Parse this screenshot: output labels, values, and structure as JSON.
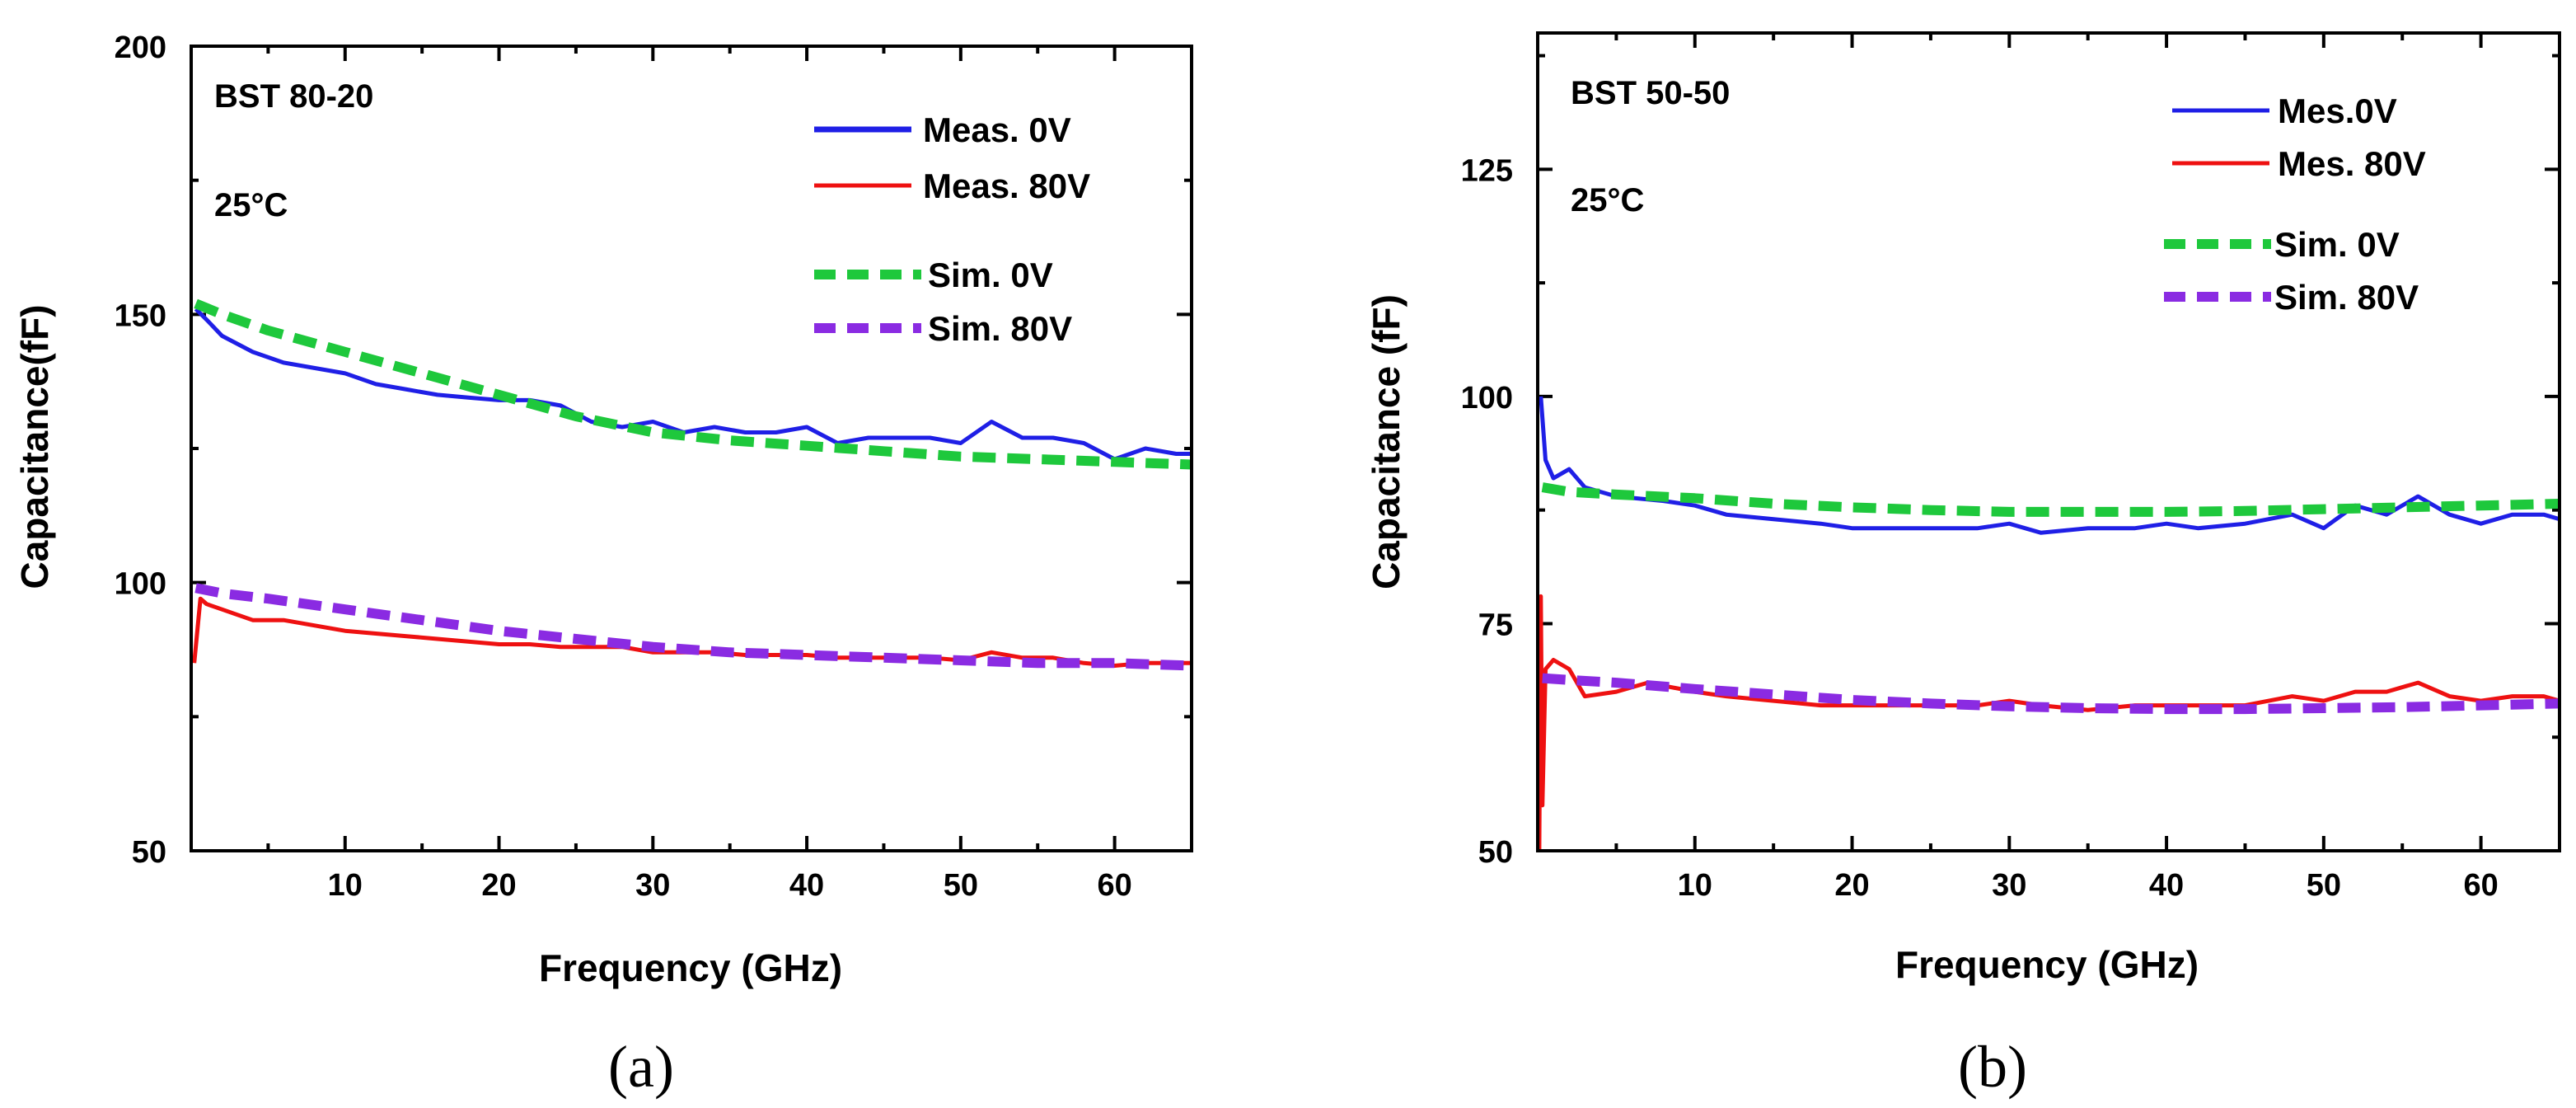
{
  "chart_data": [
    {
      "type": "line",
      "panel_label": "(a)",
      "title": "",
      "xlabel": "Frequency (GHz)",
      "ylabel": "Capacitance(fF)",
      "xlim": [
        0,
        65
      ],
      "ylim": [
        50,
        200
      ],
      "x_ticks": [
        10,
        20,
        30,
        40,
        50,
        60
      ],
      "y_ticks": [
        50,
        100,
        150,
        200
      ],
      "annotations": [
        "BST 80-20",
        "25°C"
      ],
      "legend_position": "top-right",
      "series": [
        {
          "name": "Meas. 0V",
          "color": "#1f1fe6",
          "style": "solid",
          "x": [
            0.3,
            1,
            2,
            4,
            6,
            8,
            10,
            12,
            14,
            16,
            18,
            20,
            22,
            24,
            26,
            28,
            30,
            32,
            34,
            36,
            38,
            40,
            42,
            44,
            46,
            48,
            50,
            52,
            54,
            56,
            58,
            60,
            62,
            64,
            65
          ],
          "y": [
            151,
            149,
            146,
            143,
            141,
            140,
            139,
            137,
            136,
            135,
            134.5,
            134,
            134,
            133,
            130,
            129,
            130,
            128,
            129,
            128,
            128,
            129,
            126,
            127,
            127,
            127,
            126,
            130,
            127,
            127,
            126,
            123,
            125,
            124,
            124
          ]
        },
        {
          "name": "Meas. 80V",
          "color": "#ee1111",
          "style": "solid",
          "x": [
            0.2,
            0.6,
            1,
            2,
            3,
            4,
            6,
            8,
            10,
            12,
            14,
            16,
            18,
            20,
            22,
            24,
            26,
            28,
            30,
            32,
            34,
            36,
            38,
            40,
            42,
            44,
            46,
            48,
            50,
            52,
            54,
            56,
            58,
            60,
            62,
            64,
            65
          ],
          "y": [
            85,
            97,
            96,
            95,
            94,
            93,
            93,
            92,
            91,
            90.5,
            90,
            89.5,
            89,
            88.5,
            88.5,
            88,
            88,
            88,
            87,
            87,
            87,
            86.5,
            86.5,
            86.5,
            86,
            86,
            86,
            86,
            85.5,
            87,
            86,
            86,
            85,
            84.5,
            85,
            85,
            85
          ]
        },
        {
          "name": "Sim. 0V",
          "color": "#1ec83c",
          "style": "dashed",
          "x": [
            0.3,
            2,
            5,
            10,
            15,
            20,
            25,
            30,
            35,
            40,
            45,
            50,
            55,
            60,
            65
          ],
          "y": [
            152,
            150,
            147,
            143,
            139,
            135,
            131,
            128,
            126.5,
            125.5,
            124.5,
            123.5,
            123,
            122.5,
            122
          ]
        },
        {
          "name": "Sim. 80V",
          "color": "#8a2be2",
          "style": "dashed",
          "x": [
            0.3,
            2,
            5,
            10,
            15,
            20,
            25,
            30,
            35,
            40,
            45,
            50,
            55,
            60,
            65
          ],
          "y": [
            99,
            98,
            97,
            95,
            93,
            91,
            89.5,
            88,
            87,
            86.5,
            86,
            85.5,
            85,
            85,
            84.5
          ]
        }
      ]
    },
    {
      "type": "line",
      "panel_label": "(b)",
      "title": "",
      "xlabel": "Frequency (GHz)",
      "ylabel": "Capacitance (fF)",
      "xlim": [
        0,
        65
      ],
      "ylim": [
        50,
        140
      ],
      "x_ticks": [
        10,
        20,
        30,
        40,
        50,
        60
      ],
      "y_ticks": [
        50,
        75,
        100,
        125
      ],
      "annotations": [
        "BST 50-50",
        "25°C"
      ],
      "legend_position": "top-right",
      "series": [
        {
          "name": "Mes.0V",
          "color": "#1f1fe6",
          "style": "solid",
          "x": [
            0.2,
            0.5,
            1,
            2,
            3,
            5,
            8,
            10,
            12,
            15,
            18,
            20,
            22,
            25,
            28,
            30,
            32,
            35,
            38,
            40,
            42,
            45,
            48,
            50,
            52,
            54,
            56,
            58,
            60,
            62,
            64,
            65
          ],
          "y": [
            100,
            93,
            91,
            92,
            90,
            89,
            88.5,
            88,
            87,
            86.5,
            86,
            85.5,
            85.5,
            85.5,
            85.5,
            86,
            85,
            85.5,
            85.5,
            86,
            85.5,
            86,
            87,
            85.5,
            88,
            87,
            89,
            87,
            86,
            87,
            87,
            86.5
          ]
        },
        {
          "name": "Mes. 80V",
          "color": "#ee1111",
          "style": "solid",
          "x": [
            0.1,
            0.2,
            0.3,
            0.5,
            1,
            2,
            3,
            5,
            7,
            10,
            12,
            15,
            18,
            20,
            22,
            25,
            28,
            30,
            32,
            35,
            38,
            40,
            42,
            45,
            48,
            50,
            52,
            54,
            56,
            58,
            60,
            62,
            64,
            65
          ],
          "y": [
            50,
            78,
            55,
            70,
            71,
            70,
            67,
            67.5,
            68.5,
            67.5,
            67,
            66.5,
            66,
            66,
            66,
            66,
            66,
            66.5,
            66,
            65.5,
            66,
            66,
            66,
            66,
            67,
            66.5,
            67.5,
            67.5,
            68.5,
            67,
            66.5,
            67,
            67,
            66.5
          ]
        },
        {
          "name": "Sim. 0V",
          "color": "#1ec83c",
          "style": "dashed",
          "x": [
            0.3,
            2,
            5,
            10,
            15,
            20,
            25,
            30,
            35,
            40,
            45,
            50,
            55,
            60,
            65
          ],
          "y": [
            90,
            89.5,
            89.2,
            88.8,
            88.2,
            87.8,
            87.5,
            87.3,
            87.3,
            87.3,
            87.4,
            87.6,
            87.8,
            88,
            88.2
          ]
        },
        {
          "name": "Sim. 80V",
          "color": "#8a2be2",
          "style": "dashed",
          "x": [
            0.3,
            2,
            5,
            10,
            15,
            20,
            25,
            30,
            35,
            40,
            45,
            50,
            55,
            60,
            65
          ],
          "y": [
            69,
            68.8,
            68.5,
            67.8,
            67.2,
            66.6,
            66.2,
            65.9,
            65.7,
            65.6,
            65.6,
            65.7,
            65.8,
            66,
            66.2
          ]
        }
      ]
    }
  ]
}
